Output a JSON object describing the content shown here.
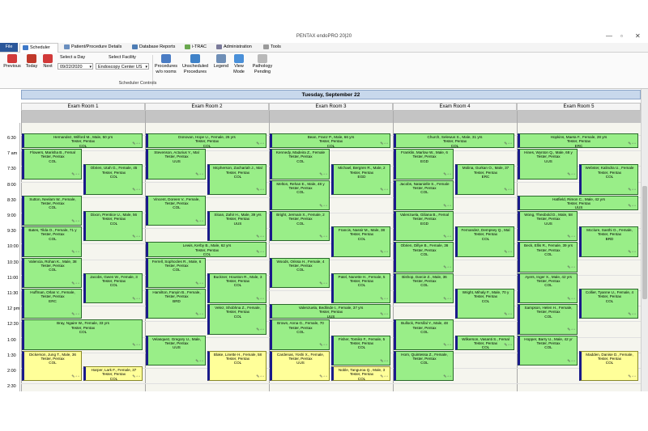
{
  "window": {
    "title": "PENTAX endoPRO 20|20",
    "controls": [
      "—",
      "▫",
      "✕"
    ]
  },
  "menu": {
    "file": "File",
    "scheduler": "Scheduler",
    "patient_details": "Patient/Procedure Details",
    "database_reports": "Database Reports",
    "itrac": "i-TRAC",
    "administration": "Administration",
    "tools": "Tools"
  },
  "ribbon": {
    "previous": "Previous",
    "today": "Today",
    "next": "Next",
    "select_day_label": "Select a Day",
    "day_value": "09/22/2020",
    "select_facility_label": "Select Facility",
    "facility_value": "Endoscopy Center US",
    "procedures_wo_rooms": "Procedures\nw/o rooms",
    "unscheduled": "Unscheduled\nProcedures",
    "legend": "Legend",
    "view_mode": "View\nMode",
    "pathology_pending": "Pathology\nPending",
    "group_label": "Scheduler Controls",
    "icon_colors": {
      "previous": "#d23a3a",
      "today": "#c0392b",
      "next": "#d23a3a",
      "procedures": "#4a7cc4",
      "unscheduled": "#3f82c8",
      "legend": "#6f8fb7",
      "view_mode": "#4a90d9",
      "pathology": "#b9b9b9"
    }
  },
  "schedule": {
    "day_title": "Tuesday, September 22",
    "rooms": [
      "Exam Room 1",
      "Exam Room 2",
      "Exam Room 3",
      "Exam Room 4",
      "Exam Room 5"
    ],
    "time_labels": [
      "6:30",
      "7 am",
      "7:30",
      "8:00",
      "8:30",
      "9:00",
      "9:30",
      "10:00",
      "10:30",
      "11:00",
      "11:30",
      "12 pm",
      "12:30",
      "1:00",
      "1:30",
      "2:00",
      "2:30"
    ],
    "appointments": [
      {
        "room": 0,
        "half": "full",
        "start": 0,
        "rows": 1,
        "color": "green",
        "lines": [
          "Hernandez, Wilford M., Male, 50 yrs",
          "Tester, Pentax",
          "COL"
        ]
      },
      {
        "room": 0,
        "half": "left",
        "start": 1,
        "rows": 2,
        "color": "green",
        "lines": [
          "Flowers, Marisha B., Femal",
          "Tester, Pentax",
          "COL"
        ]
      },
      {
        "room": 0,
        "half": "right",
        "start": 2,
        "rows": 2,
        "color": "green",
        "lines": [
          "Obrien, Utah G., Female, 45",
          "Tester, Pentax",
          "COL"
        ]
      },
      {
        "room": 0,
        "half": "left",
        "start": 4,
        "rows": 2,
        "color": "green",
        "lines": [
          "Sutton, Neelam W., Female,",
          "Tester, Pentax",
          "COL"
        ]
      },
      {
        "room": 0,
        "half": "right",
        "start": 5,
        "rows": 2,
        "color": "green",
        "lines": [
          "Dixon, Prentice U., Male, 56",
          "Tester, Pentax",
          "COL"
        ]
      },
      {
        "room": 0,
        "half": "left",
        "start": 6,
        "rows": 2,
        "color": "green",
        "lines": [
          "Bates, Tilda O., Female, 71 y",
          "Tester, Pentax",
          "COL"
        ]
      },
      {
        "room": 0,
        "half": "left",
        "start": 8,
        "rows": 2,
        "color": "green",
        "lines": [
          "Valencia, Rohan K., Male, 38",
          "Tester, Pentax",
          "COL"
        ]
      },
      {
        "room": 0,
        "half": "right",
        "start": 9,
        "rows": 2,
        "color": "green",
        "lines": [
          "Jacobs, Gwen W., Female, 3",
          "Tester, Pentax",
          "COL"
        ]
      },
      {
        "room": 0,
        "half": "left",
        "start": 10,
        "rows": 2,
        "color": "green",
        "lines": [
          "Huffman, Orlan V., Female,",
          "Tester, Pentax",
          "ERC"
        ]
      },
      {
        "room": 0,
        "half": "full",
        "start": 12,
        "rows": 2,
        "color": "green",
        "lines": [
          "Bray, Ngaire W., Female, 33 yrs",
          "Tester, Pentax",
          "COL"
        ]
      },
      {
        "room": 0,
        "half": "left",
        "start": 14,
        "rows": 2,
        "color": "yellow",
        "lines": [
          "Dickerson, Jung T., Male, 36",
          "Tester, Pentax",
          "COL"
        ]
      },
      {
        "room": 0,
        "half": "right",
        "start": 15,
        "rows": 1,
        "color": "yellow",
        "lines": [
          "Harper, Lark F., Female, 37",
          "Tester, Pentax",
          "COL"
        ]
      },
      {
        "room": 1,
        "half": "full",
        "start": 0,
        "rows": 1,
        "color": "green",
        "lines": [
          "Donovan, Hope U., Female, 26 yrs",
          "Tester, Pentax",
          "COL"
        ]
      },
      {
        "room": 1,
        "half": "left",
        "start": 1,
        "rows": 2,
        "color": "green",
        "lines": [
          "Stevenson, Acturius Y., Mal",
          "Tester, Pentax",
          "UUS"
        ]
      },
      {
        "room": 1,
        "half": "right",
        "start": 2,
        "rows": 2,
        "color": "green",
        "lines": [
          "Mcpherson, Zachariah J., Mal",
          "Tester, Pentax",
          "COL"
        ]
      },
      {
        "room": 1,
        "half": "left",
        "start": 4,
        "rows": 2,
        "color": "green",
        "lines": [
          "Vincent, Doreen V., Female,",
          "Tester, Pentax",
          "COL"
        ]
      },
      {
        "room": 1,
        "half": "right",
        "start": 5,
        "rows": 2,
        "color": "green",
        "lines": [
          "Sloan, Zahir H., Male, 39 yrs",
          "Tester, Pentax",
          "UUS"
        ]
      },
      {
        "room": 1,
        "half": "full",
        "start": 7,
        "rows": 1,
        "color": "green",
        "lines": [
          "Lewis, Kerby B., Male, 62 yrs",
          "Tester, Pentax",
          "COL"
        ]
      },
      {
        "room": 1,
        "half": "left",
        "start": 8,
        "rows": 2,
        "color": "green",
        "lines": [
          "Ferrell, Sophocles R., Male, 6",
          "Tester, Pentax",
          "COL"
        ]
      },
      {
        "room": 1,
        "half": "right",
        "start": 9,
        "rows": 2,
        "color": "green",
        "lines": [
          "Buckner, Houston R., Male, 3",
          "Tester, Pentax",
          "COL"
        ]
      },
      {
        "room": 1,
        "half": "left",
        "start": 10,
        "rows": 2,
        "color": "green",
        "lines": [
          "Hamilton, Fanyin B., Female,",
          "Tester, Pentax",
          "BRD"
        ]
      },
      {
        "room": 1,
        "half": "right",
        "start": 11,
        "rows": 2,
        "color": "green",
        "lines": [
          "Velez, Shobhna Z., Female,",
          "Tester, Pentax",
          "COL"
        ]
      },
      {
        "room": 1,
        "half": "left",
        "start": 13,
        "rows": 2,
        "color": "green",
        "lines": [
          "Velasquez, Gregory U., Male,",
          "Tester, Pentax",
          "UUS"
        ]
      },
      {
        "room": 1,
        "half": "right",
        "start": 14,
        "rows": 2,
        "color": "yellow",
        "lines": [
          "Blake, Linette H., Female, 58",
          "Tester, Pentax",
          "COL"
        ]
      },
      {
        "room": 2,
        "half": "full",
        "start": 0,
        "rows": 1,
        "color": "green",
        "lines": [
          "Bean, Franz P., Male, 66 yrs",
          "Tester, Pentax",
          "COL"
        ]
      },
      {
        "room": 2,
        "half": "left",
        "start": 1,
        "rows": 2,
        "color": "green",
        "lines": [
          "Kennedy, Madeira Z., Female",
          "Tester, Pentax",
          "COL"
        ]
      },
      {
        "room": 2,
        "half": "right",
        "start": 2,
        "rows": 2,
        "color": "green",
        "lines": [
          "Michael, Bergren R., Male, 2",
          "Tester, Pentax",
          "EGD"
        ]
      },
      {
        "room": 2,
        "half": "left",
        "start": 3,
        "rows": 2,
        "color": "green",
        "lines": [
          "Melton, Rehan E., Male, 48 y",
          "Tester, Pentax",
          "COL"
        ]
      },
      {
        "room": 2,
        "half": "left",
        "start": 5,
        "rows": 2,
        "color": "green",
        "lines": [
          "Bright, Jermain X., Female, 2",
          "Tester, Pentax",
          "COL"
        ]
      },
      {
        "room": 2,
        "half": "right",
        "start": 6,
        "rows": 2,
        "color": "green",
        "lines": [
          "Francis, Nassir M., Male, 38",
          "Tester, Pentax",
          "COL"
        ]
      },
      {
        "room": 2,
        "half": "left",
        "start": 8,
        "rows": 2,
        "color": "green",
        "lines": [
          "Woods, Orissa H., Female, 4",
          "Tester, Pentax",
          "COL"
        ]
      },
      {
        "room": 2,
        "half": "right",
        "start": 9,
        "rows": 2,
        "color": "green",
        "lines": [
          "Patel, Nanette H., Female, 5",
          "Tester, Pentax",
          "COL"
        ]
      },
      {
        "room": 2,
        "half": "full",
        "start": 11,
        "rows": 1,
        "color": "green",
        "lines": [
          "Valenzuela, Bedlinde I., Female, 37 yrs",
          "Tester, Pentax",
          "UUS"
        ]
      },
      {
        "room": 2,
        "half": "left",
        "start": 12,
        "rows": 2,
        "color": "green",
        "lines": [
          "Brown, Anna G., Female, 70",
          "Tester, Pentax",
          "COL"
        ]
      },
      {
        "room": 2,
        "half": "right",
        "start": 13,
        "rows": 2,
        "color": "green",
        "lines": [
          "Fisher, Tomiko F., Female, 5",
          "Tester, Pentax",
          "COL"
        ]
      },
      {
        "room": 2,
        "half": "left",
        "start": 14,
        "rows": 2,
        "color": "yellow",
        "lines": [
          "Cardenas, Yoshi X., Female,",
          "Tester, Pentax",
          "UUS"
        ]
      },
      {
        "room": 2,
        "half": "right",
        "start": 15,
        "rows": 1,
        "color": "yellow",
        "lines": [
          "Noble, Tanguroa Q., Male, 3",
          "Tester, Pentax",
          "COL"
        ]
      },
      {
        "room": 3,
        "half": "full",
        "start": 0,
        "rows": 1,
        "color": "green",
        "lines": [
          "Church, Selewus S., Male, 31 yrs",
          "Tester, Pentax",
          "COL"
        ]
      },
      {
        "room": 3,
        "half": "left",
        "start": 1,
        "rows": 2,
        "color": "green",
        "lines": [
          "Franklin, Marlow W., Male, 6",
          "Tester, Pentax",
          "EGD"
        ]
      },
      {
        "room": 3,
        "half": "right",
        "start": 2,
        "rows": 2,
        "color": "green",
        "lines": [
          "Molina, Gurkan O., Male, 37",
          "Tester, Pentax",
          "ERC"
        ]
      },
      {
        "room": 3,
        "half": "left",
        "start": 3,
        "rows": 2,
        "color": "green",
        "lines": [
          "Jacobs, Natanielle S., Female",
          "Tester, Pentax",
          "COL"
        ]
      },
      {
        "room": 3,
        "half": "left",
        "start": 5,
        "rows": 2,
        "color": "green",
        "lines": [
          "Valenzuela, Giliana B., Femal",
          "Tester, Pentax",
          "EGD"
        ]
      },
      {
        "room": 3,
        "half": "right",
        "start": 6,
        "rows": 2,
        "color": "green",
        "lines": [
          "Fernandez, Dempsey Q., Mal",
          "Tester, Pentax",
          "COL"
        ]
      },
      {
        "room": 3,
        "half": "left",
        "start": 7,
        "rows": 2,
        "color": "green",
        "lines": [
          "Obrien, Dillye B., Female, 36",
          "Tester, Pentax",
          "COL"
        ]
      },
      {
        "room": 3,
        "half": "left",
        "start": 9,
        "rows": 2,
        "color": "green",
        "lines": [
          "Bishop, Darcie Z., Male, 36",
          "Tester, Pentax",
          "COL"
        ]
      },
      {
        "room": 3,
        "half": "right",
        "start": 10,
        "rows": 2,
        "color": "green",
        "lines": [
          "Wright, Mihaly F., Male, 70 y",
          "Tester, Pentax",
          "COL"
        ]
      },
      {
        "room": 3,
        "half": "left",
        "start": 12,
        "rows": 2,
        "color": "green",
        "lines": [
          "Bullock, Persifal Y., Male, 48",
          "Tester, Pentax",
          "COL"
        ]
      },
      {
        "room": 3,
        "half": "right",
        "start": 13,
        "rows": 1,
        "color": "green",
        "lines": [
          "Wilkerson, Vasanti S., Femal",
          "Tester, Pentax",
          "COL"
        ]
      },
      {
        "room": 3,
        "half": "left",
        "start": 14,
        "rows": 2,
        "color": "green",
        "lines": [
          "Horn, Quintessa Z., Female,",
          "Tester, Pentax",
          "COL"
        ]
      },
      {
        "room": 4,
        "half": "full",
        "start": 0,
        "rows": 1,
        "color": "green",
        "lines": [
          "Hopkins, Maeta F., Female, 28 yrs",
          "Tester, Pentax",
          "ERC"
        ]
      },
      {
        "room": 4,
        "half": "left",
        "start": 1,
        "rows": 2,
        "color": "green",
        "lines": [
          "Hines, Wynton Q., Male, 68 y",
          "Tester, Pentax",
          "UUS"
        ]
      },
      {
        "room": 4,
        "half": "right",
        "start": 2,
        "rows": 2,
        "color": "green",
        "lines": [
          "Webster, Kalindra U., Female",
          "Tester, Pentax",
          "COL"
        ]
      },
      {
        "room": 4,
        "half": "full",
        "start": 4,
        "rows": 1,
        "color": "green",
        "lines": [
          "Hatfield, Rimon C., Male, 42 yrs",
          "Tester, Pentax",
          "UUS"
        ]
      },
      {
        "room": 4,
        "half": "left",
        "start": 5,
        "rows": 2,
        "color": "green",
        "lines": [
          "Wong, Theobold D., Male, 58",
          "Tester, Pentax",
          "UUS"
        ]
      },
      {
        "room": 4,
        "half": "right",
        "start": 6,
        "rows": 2,
        "color": "green",
        "lines": [
          "Mcclure, Sasthi O., Female,",
          "Tester, Pentax",
          "BRD"
        ]
      },
      {
        "room": 4,
        "half": "left",
        "start": 7,
        "rows": 2,
        "color": "green",
        "lines": [
          "Beck, Ellis R., Female, 39 yrs",
          "Tester, Pentax",
          "COL"
        ]
      },
      {
        "room": 4,
        "half": "left",
        "start": 9,
        "rows": 2,
        "color": "green",
        "lines": [
          "Ayers, Inger X., Male, 42 yrs",
          "Tester, Pentax",
          "COL"
        ]
      },
      {
        "room": 4,
        "half": "right",
        "start": 10,
        "rows": 2,
        "color": "green",
        "lines": [
          "Collier, Tyanne U., Female, 4",
          "Tester, Pentax",
          "COL"
        ]
      },
      {
        "room": 4,
        "half": "left",
        "start": 11,
        "rows": 2,
        "color": "green",
        "lines": [
          "Sampson, Helen H., Female,",
          "Tester, Pentax",
          "COL"
        ]
      },
      {
        "room": 4,
        "half": "left",
        "start": 13,
        "rows": 2,
        "color": "green",
        "lines": [
          "Hopper, Barry U., Male, 42 yr",
          "Tester, Pentax",
          "COL"
        ]
      },
      {
        "room": 4,
        "half": "right",
        "start": 14,
        "rows": 2,
        "color": "yellow",
        "lines": [
          "Madden, Danise D., Female,",
          "Tester, Pentax",
          "COL"
        ]
      }
    ]
  }
}
